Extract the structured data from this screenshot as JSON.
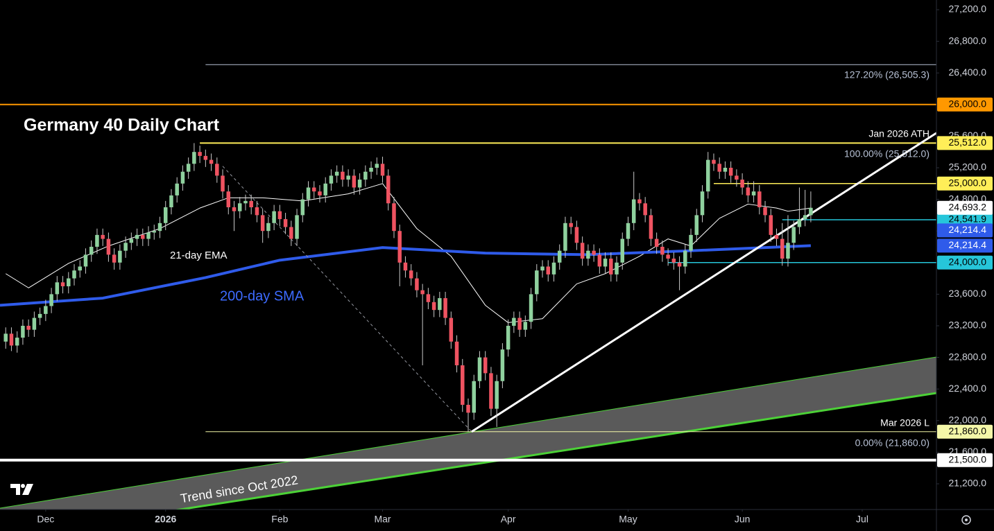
{
  "chart_data": {
    "type": "candlestick",
    "title": "Germany 40 Daily Chart",
    "annotations": {
      "ema_label": "21-day EMA",
      "sma_label": "200-day SMA",
      "trend_label": "Trend since Oct 2022",
      "ath_label": "Jan 2026 ATH",
      "low_label": "Mar 2026 L",
      "fib_127": "127.20% (26,505.3)",
      "fib_100": "100.00% (25,512.0)",
      "fib_0": "0.00% (21,860.0)"
    },
    "xlim": [
      -8,
      156
    ],
    "xticks": [
      {
        "value": 0,
        "label": "Dec"
      },
      {
        "value": 21,
        "label": "2026"
      },
      {
        "value": 41,
        "label": "Feb"
      },
      {
        "value": 59,
        "label": "Mar"
      },
      {
        "value": 81,
        "label": "Apr"
      },
      {
        "value": 102,
        "label": "May"
      },
      {
        "value": 122,
        "label": "Jun"
      },
      {
        "value": 143,
        "label": "Jul"
      }
    ],
    "ylim": [
      20875,
      27323
    ],
    "yticks": [
      {
        "value": 21200,
        "label": "21,200.0"
      },
      {
        "value": 21600,
        "label": "21,600.0"
      },
      {
        "value": 22000,
        "label": "22,000.0"
      },
      {
        "value": 22400,
        "label": "22,400.0"
      },
      {
        "value": 22800,
        "label": "22,800.0"
      },
      {
        "value": 23200,
        "label": "23,200.0"
      },
      {
        "value": 23600,
        "label": "23,600.0"
      },
      {
        "value": 24000,
        "label": "24,000.0"
      },
      {
        "value": 24400,
        "label": "24,400.0"
      },
      {
        "value": 24800,
        "label": "24,800.0"
      },
      {
        "value": 25200,
        "label": "25,200.0"
      },
      {
        "value": 25600,
        "label": "25,600.0"
      },
      {
        "value": 26000,
        "label": "26,000.0"
      },
      {
        "value": 26400,
        "label": "26,400.0"
      },
      {
        "value": 26800,
        "label": "26,800.0"
      },
      {
        "value": 27200,
        "label": "27,200.0"
      }
    ],
    "up_color": "#8fd19e",
    "down_color": "#ef5361",
    "wick_color": "#c9c9c9",
    "x": [
      -7,
      -6,
      -5,
      -4,
      -3,
      -2,
      -1,
      0,
      1,
      2,
      3,
      4,
      5,
      6,
      7,
      8,
      9,
      10,
      11,
      12,
      13,
      14,
      15,
      16,
      17,
      18,
      19,
      20,
      21,
      22,
      23,
      24,
      25,
      26,
      27,
      28,
      29,
      30,
      31,
      32,
      33,
      34,
      35,
      36,
      37,
      38,
      39,
      40,
      41,
      42,
      43,
      44,
      45,
      46,
      47,
      48,
      49,
      50,
      51,
      52,
      53,
      54,
      55,
      56,
      57,
      58,
      59,
      60,
      61,
      62,
      63,
      64,
      65,
      66,
      67,
      68,
      69,
      70,
      71,
      72,
      73,
      74,
      75,
      76,
      77,
      78,
      79,
      80,
      81,
      82,
      83,
      84,
      85,
      86,
      87,
      88,
      89,
      90,
      91,
      92,
      93,
      94,
      95,
      96,
      97,
      98,
      99,
      100,
      101,
      102,
      103,
      104,
      105,
      106,
      107,
      108,
      109,
      110,
      111,
      112,
      113,
      114,
      115,
      116,
      117,
      118,
      119,
      120,
      121,
      122,
      123,
      124,
      125,
      126,
      127,
      128,
      129,
      130,
      131,
      132,
      133,
      134
    ],
    "open": [
      23000,
      23100,
      22950,
      23050,
      23200,
      23150,
      23300,
      23350,
      23450,
      23600,
      23750,
      23700,
      23800,
      23900,
      23950,
      24100,
      24200,
      24350,
      24300,
      24100,
      24000,
      24150,
      24250,
      24300,
      24350,
      24300,
      24380,
      24400,
      24500,
      24700,
      24850,
      25000,
      25150,
      25250,
      25400,
      25350,
      25300,
      25250,
      25100,
      24900,
      24700,
      24650,
      24750,
      24780,
      24700,
      24600,
      24400,
      24500,
      24650,
      24550,
      24450,
      24300,
      24600,
      24800,
      24950,
      24900,
      24850,
      25000,
      25100,
      25150,
      25050,
      25100,
      24950,
      25050,
      25150,
      25200,
      25250,
      25100,
      24750,
      24400,
      24000,
      23900,
      23800,
      23650,
      23600,
      23500,
      23400,
      23550,
      23300,
      23000,
      22700,
      22200,
      22100,
      22500,
      22800,
      22600,
      22150,
      22500,
      22900,
      23200,
      23300,
      23150,
      23250,
      23600,
      23900,
      23950,
      23850,
      24000,
      24150,
      24500,
      24450,
      24250,
      24050,
      24150,
      24100,
      23950,
      24050,
      23850,
      24000,
      24300,
      24500,
      24800,
      24750,
      24600,
      24300,
      24200,
      24100,
      24050,
      24000,
      23950,
      24150,
      24350,
      24600,
      24900,
      25300,
      25250,
      25150,
      25200,
      25100,
      25050,
      24950,
      24850,
      24900,
      24700,
      24600,
      24350,
      24300,
      24050,
      24250,
      24450,
      24550,
      24600
    ],
    "high": [
      23180,
      23180,
      23130,
      23280,
      23280,
      23380,
      23430,
      23530,
      23680,
      23830,
      23830,
      23880,
      23980,
      24030,
      24180,
      24280,
      24430,
      24430,
      24380,
      24180,
      24230,
      24330,
      24380,
      24430,
      24430,
      24460,
      24480,
      24580,
      24780,
      24930,
      25080,
      25230,
      25330,
      25512,
      25480,
      25430,
      25380,
      25330,
      25180,
      24980,
      24780,
      24830,
      24860,
      24860,
      24780,
      24680,
      24580,
      24730,
      24730,
      24630,
      24530,
      24680,
      24880,
      25030,
      25030,
      24980,
      25080,
      25180,
      25230,
      25230,
      25180,
      25180,
      25130,
      25230,
      25280,
      25330,
      25340,
      25180,
      24830,
      24480,
      24080,
      23980,
      23880,
      23730,
      23680,
      23580,
      23630,
      23630,
      23380,
      23080,
      22780,
      22280,
      22580,
      22880,
      22880,
      22680,
      22580,
      22980,
      23280,
      23380,
      23380,
      23330,
      23680,
      23980,
      24030,
      24030,
      24080,
      24230,
      24580,
      24580,
      24530,
      24330,
      24230,
      24230,
      24180,
      24130,
      24130,
      24080,
      24380,
      24580,
      25150,
      24880,
      24830,
      24680,
      24380,
      24280,
      24180,
      24130,
      24080,
      24230,
      24430,
      24680,
      24980,
      25400,
      25380,
      25330,
      25280,
      25280,
      25180,
      25130,
      25030,
      25030,
      24980,
      24780,
      24680,
      24430,
      24500,
      24600,
      24530,
      24950,
      24920,
      24900
    ],
    "low": [
      22910,
      22880,
      22860,
      22960,
      23060,
      23060,
      23210,
      23260,
      23360,
      23510,
      23610,
      23610,
      23710,
      23810,
      23860,
      24010,
      24110,
      24210,
      24010,
      23910,
      23910,
      24060,
      24160,
      24210,
      24210,
      24210,
      24290,
      24310,
      24410,
      24610,
      24760,
      24910,
      25060,
      25160,
      25260,
      25210,
      25160,
      25010,
      24810,
      24610,
      24400,
      24560,
      24660,
      24610,
      24510,
      24250,
      24310,
      24410,
      24460,
      24360,
      24210,
      24210,
      24510,
      24710,
      24810,
      24760,
      24760,
      24910,
      25010,
      24960,
      24960,
      24860,
      24860,
      24960,
      25060,
      25110,
      25010,
      24660,
      24310,
      23700,
      23810,
      23710,
      23560,
      22700,
      23410,
      23310,
      23310,
      23210,
      22910,
      22610,
      22110,
      21860,
      22010,
      22410,
      22510,
      22060,
      21920,
      22410,
      22810,
      23110,
      23060,
      23060,
      23160,
      23510,
      23810,
      23760,
      23760,
      23910,
      24060,
      24360,
      24160,
      23960,
      23960,
      24010,
      23860,
      23860,
      23760,
      23760,
      23910,
      24210,
      24410,
      24660,
      24510,
      24210,
      24110,
      24010,
      23960,
      23910,
      23650,
      23860,
      24060,
      24260,
      24510,
      24810,
      25160,
      25060,
      25060,
      25010,
      24960,
      24860,
      24760,
      24760,
      24610,
      24510,
      24260,
      24210,
      23960,
      23950,
      24160,
      24360,
      24460,
      24510
    ],
    "close": [
      23100,
      22950,
      23050,
      23200,
      23150,
      23300,
      23350,
      23450,
      23600,
      23750,
      23700,
      23800,
      23900,
      23950,
      24100,
      24200,
      24350,
      24300,
      24100,
      24000,
      24150,
      24250,
      24300,
      24350,
      24300,
      24380,
      24400,
      24500,
      24700,
      24850,
      25000,
      25150,
      25250,
      25400,
      25350,
      25300,
      25250,
      25100,
      24900,
      24700,
      24650,
      24750,
      24780,
      24700,
      24600,
      24400,
      24500,
      24650,
      24550,
      24450,
      24300,
      24600,
      24800,
      24950,
      24900,
      24850,
      25000,
      25100,
      25150,
      25050,
      25100,
      24950,
      25050,
      25150,
      25200,
      25250,
      25100,
      24750,
      24400,
      24000,
      23900,
      23800,
      23650,
      23600,
      23500,
      23400,
      23550,
      23300,
      23000,
      22700,
      22200,
      22100,
      22500,
      22800,
      22600,
      22150,
      22500,
      22900,
      23200,
      23300,
      23150,
      23250,
      23600,
      23900,
      23950,
      23850,
      24000,
      24150,
      24500,
      24450,
      24250,
      24050,
      24150,
      24100,
      23950,
      24050,
      23850,
      24000,
      24300,
      24500,
      24800,
      24750,
      24600,
      24300,
      24200,
      24100,
      24050,
      24000,
      23950,
      24150,
      24350,
      24600,
      24900,
      25300,
      25250,
      25150,
      25200,
      25100,
      25050,
      24950,
      24850,
      24900,
      24700,
      24600,
      24350,
      24300,
      24050,
      24250,
      24450,
      24550,
      24600,
      24693.2
    ],
    "overlays": [
      {
        "x": [
          -7,
          -3,
          4,
          11,
          20,
          27,
          32,
          38,
          45,
          53,
          59,
          65,
          71,
          77,
          81,
          87,
          93,
          98,
          104,
          109,
          113,
          118,
          123,
          128,
          130,
          134
        ],
        "values": [
          23860,
          23680,
          23990,
          24210,
          24430,
          24690,
          24820,
          24820,
          24780,
          24870,
          25000,
          24430,
          24080,
          23460,
          23240,
          23290,
          23730,
          23860,
          24080,
          24300,
          24210,
          24560,
          24740,
          24690,
          24650,
          24690
        ],
        "color": "#ffffff",
        "width": 1
      },
      {
        "x": [
          -8,
          10,
          28,
          41,
          59,
          77,
          95,
          113,
          134
        ],
        "values": [
          23460,
          23550,
          23810,
          24030,
          24190,
          24120,
          24100,
          24150,
          24214.4
        ],
        "color": "#2f5bea",
        "width": 4
      }
    ],
    "channel": {
      "x": [
        -8,
        156
      ],
      "upper": [
        20893,
        22805
      ],
      "lower": [
        20524,
        22349
      ],
      "color": "#4cd137",
      "fill": "#5a5a5a"
    },
    "trendlines": [
      {
        "x": [
          74.6,
          156
        ],
        "values": [
          21860,
          25640
        ],
        "color": "#ffffff",
        "width": 3,
        "dashed": false
      },
      {
        "x": [
          31,
          74.6
        ],
        "values": [
          25220,
          21860
        ],
        "color": "#9598a1",
        "width": 1,
        "dashed": true
      }
    ],
    "levels": [
      {
        "value": 26505.3,
        "color": "#b8c2d6",
        "from": 28,
        "width": 1
      },
      {
        "value": 26000,
        "label": "26,000.0",
        "color": "#ff9800",
        "from": -8,
        "width": 2
      },
      {
        "value": 25512,
        "label": "25,512.0",
        "color": "#ffee58",
        "from": 27,
        "width": 2
      },
      {
        "value": 25000,
        "label": "25,000.0",
        "color": "#ffee58",
        "from": 117,
        "width": 1.5
      },
      {
        "value": 24541.9,
        "label": "24,541.9",
        "color": "#26c6da",
        "from": 129,
        "width": 1.5
      },
      {
        "value": 24000,
        "label": "24,000.0",
        "color": "#26c6da",
        "from": 109,
        "width": 1.5
      },
      {
        "value": 21860,
        "label": "21,860.0",
        "color": "#f4f7a8",
        "from": 28,
        "width": 1
      },
      {
        "value": 21500,
        "label": "21,500.0",
        "color": "#ffffff",
        "from": -8,
        "width": 4
      }
    ],
    "price_labels": [
      {
        "value": 24693.2,
        "label": "24,693.2",
        "color": "#ffffff",
        "text_color": "#000000"
      },
      {
        "value": 24214.4,
        "label": "24,214.4",
        "color": "#2f5bea",
        "text_color": "#ffffff"
      },
      {
        "value": 24214.4,
        "label": "24,214.4",
        "color": "#2f5bea",
        "text_color": "#ffffff"
      }
    ]
  }
}
